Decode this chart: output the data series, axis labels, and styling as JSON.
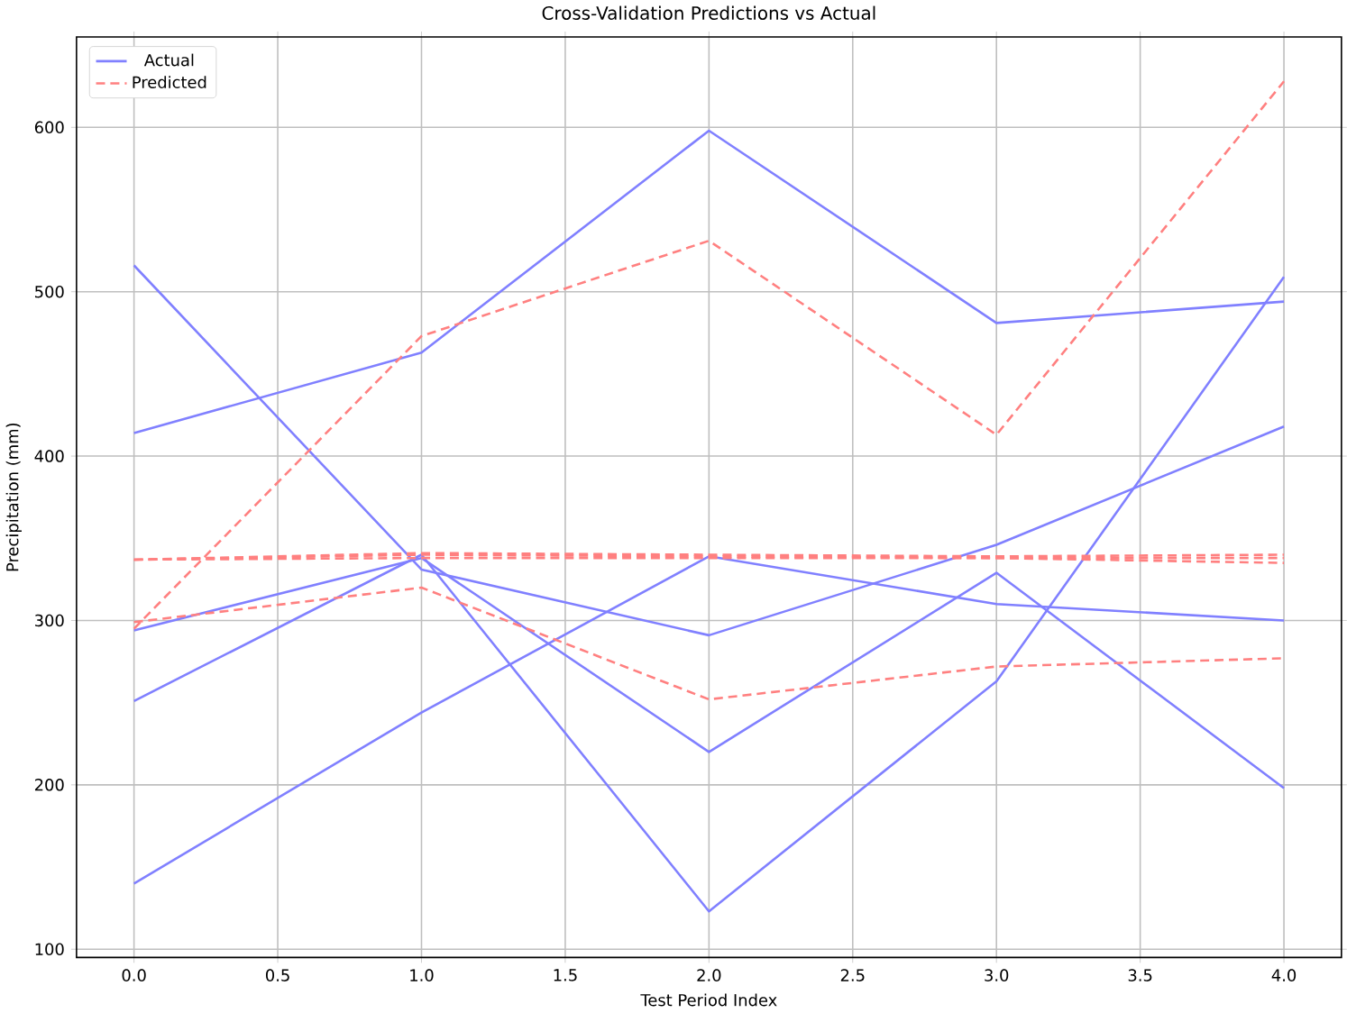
{
  "chart_data": {
    "type": "line",
    "title": "Cross-Validation Predictions vs Actual",
    "xlabel": "Test Period Index",
    "ylabel": "Precipitation (mm)",
    "x": [
      0,
      1,
      2,
      3,
      4
    ],
    "series": [
      {
        "name": "Actual",
        "color": "#8080ff",
        "line_style": "solid",
        "values": [
          414,
          463,
          598,
          481,
          494
        ]
      },
      {
        "color": "#8080ff",
        "line_style": "solid",
        "values": [
          516,
          331,
          291,
          346,
          418
        ]
      },
      {
        "color": "#8080ff",
        "line_style": "solid",
        "values": [
          251,
          340,
          123,
          263,
          509
        ]
      },
      {
        "color": "#8080ff",
        "line_style": "solid",
        "values": [
          294,
          338,
          220,
          329,
          198
        ]
      },
      {
        "color": "#8080ff",
        "line_style": "solid",
        "values": [
          140,
          244,
          339,
          310,
          300
        ]
      },
      {
        "name": "Predicted",
        "color": "#ff8080",
        "line_style": "dashed",
        "values": [
          295,
          473,
          531,
          413,
          628
        ]
      },
      {
        "color": "#ff8080",
        "line_style": "dashed",
        "values": [
          299,
          320,
          252,
          272,
          277
        ]
      },
      {
        "color": "#ff8080",
        "line_style": "dashed",
        "values": [
          337,
          338,
          338,
          338,
          335
        ]
      },
      {
        "color": "#ff8080",
        "line_style": "dashed",
        "values": [
          337,
          340,
          339,
          338,
          338
        ]
      },
      {
        "color": "#ff8080",
        "line_style": "dashed",
        "values": [
          337,
          341,
          340,
          339,
          340
        ]
      }
    ],
    "xlim": [
      -0.2,
      4.2
    ],
    "ylim": [
      95,
      655
    ],
    "xticks": [
      {
        "value": 0,
        "label": "0.0"
      },
      {
        "value": 0.5,
        "label": "0.5"
      },
      {
        "value": 1,
        "label": "1.0"
      },
      {
        "value": 1.5,
        "label": "1.5"
      },
      {
        "value": 2,
        "label": "2.0"
      },
      {
        "value": 2.5,
        "label": "2.5"
      },
      {
        "value": 3,
        "label": "3.0"
      },
      {
        "value": 3.5,
        "label": "3.5"
      },
      {
        "value": 4,
        "label": "4.0"
      }
    ],
    "yticks": [
      100,
      200,
      300,
      400,
      500,
      600
    ],
    "grid": true,
    "legend": "top left",
    "marker": "none"
  }
}
